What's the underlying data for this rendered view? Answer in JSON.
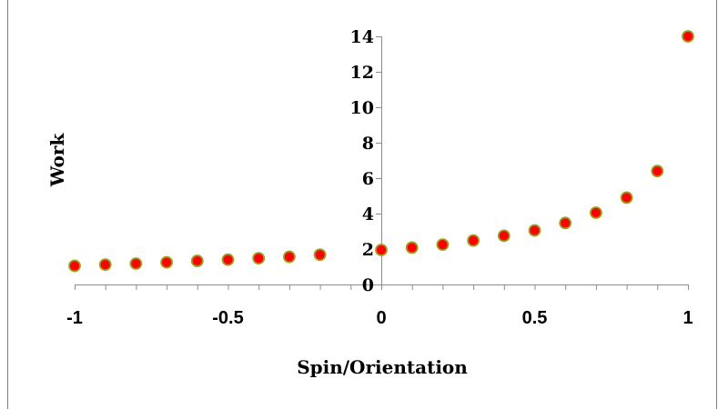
{
  "chart_data": {
    "type": "scatter",
    "title": "",
    "xlabel": "Spin/Orientation",
    "ylabel": "Work",
    "xlim": [
      -1,
      1
    ],
    "ylim": [
      0,
      14
    ],
    "x_ticks": [
      "-1",
      "-0.5",
      "0",
      "0.5",
      "1"
    ],
    "y_ticks": [
      "0",
      "2",
      "4",
      "6",
      "8",
      "10",
      "12",
      "14"
    ],
    "grid": false,
    "legend": "none",
    "marker_fill": "#ff0000",
    "marker_edge": "#9aa020",
    "points": [
      {
        "x": -1.0,
        "y": 1.05
      },
      {
        "x": -0.9,
        "y": 1.12
      },
      {
        "x": -0.8,
        "y": 1.18
      },
      {
        "x": -0.7,
        "y": 1.25
      },
      {
        "x": -0.6,
        "y": 1.33
      },
      {
        "x": -0.5,
        "y": 1.4
      },
      {
        "x": -0.4,
        "y": 1.48
      },
      {
        "x": -0.3,
        "y": 1.56
      },
      {
        "x": -0.2,
        "y": 1.68
      },
      {
        "x": 0.0,
        "y": 1.95
      },
      {
        "x": 0.1,
        "y": 2.08
      },
      {
        "x": 0.2,
        "y": 2.25
      },
      {
        "x": 0.3,
        "y": 2.48
      },
      {
        "x": 0.4,
        "y": 2.75
      },
      {
        "x": 0.5,
        "y": 3.05
      },
      {
        "x": 0.6,
        "y": 3.47
      },
      {
        "x": 0.7,
        "y": 4.05
      },
      {
        "x": 0.8,
        "y": 4.9
      },
      {
        "x": 0.9,
        "y": 6.4
      },
      {
        "x": 1.0,
        "y": 14.0
      }
    ]
  }
}
